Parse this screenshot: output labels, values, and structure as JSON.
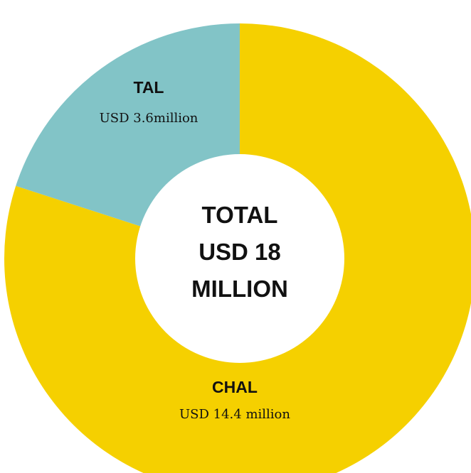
{
  "chart_data": {
    "type": "pie",
    "donut": true,
    "slices": [
      {
        "label": "CHAL",
        "value": 14.4,
        "value_label": "USD 14.4 million",
        "color": "#F5D000"
      },
      {
        "label": "TAL",
        "value": 3.6,
        "value_label": "USD 3.6million",
        "color": "#82C4C7"
      }
    ],
    "center_label": [
      "TOTAL",
      "USD 18",
      "MILLION"
    ],
    "legend": "none"
  }
}
